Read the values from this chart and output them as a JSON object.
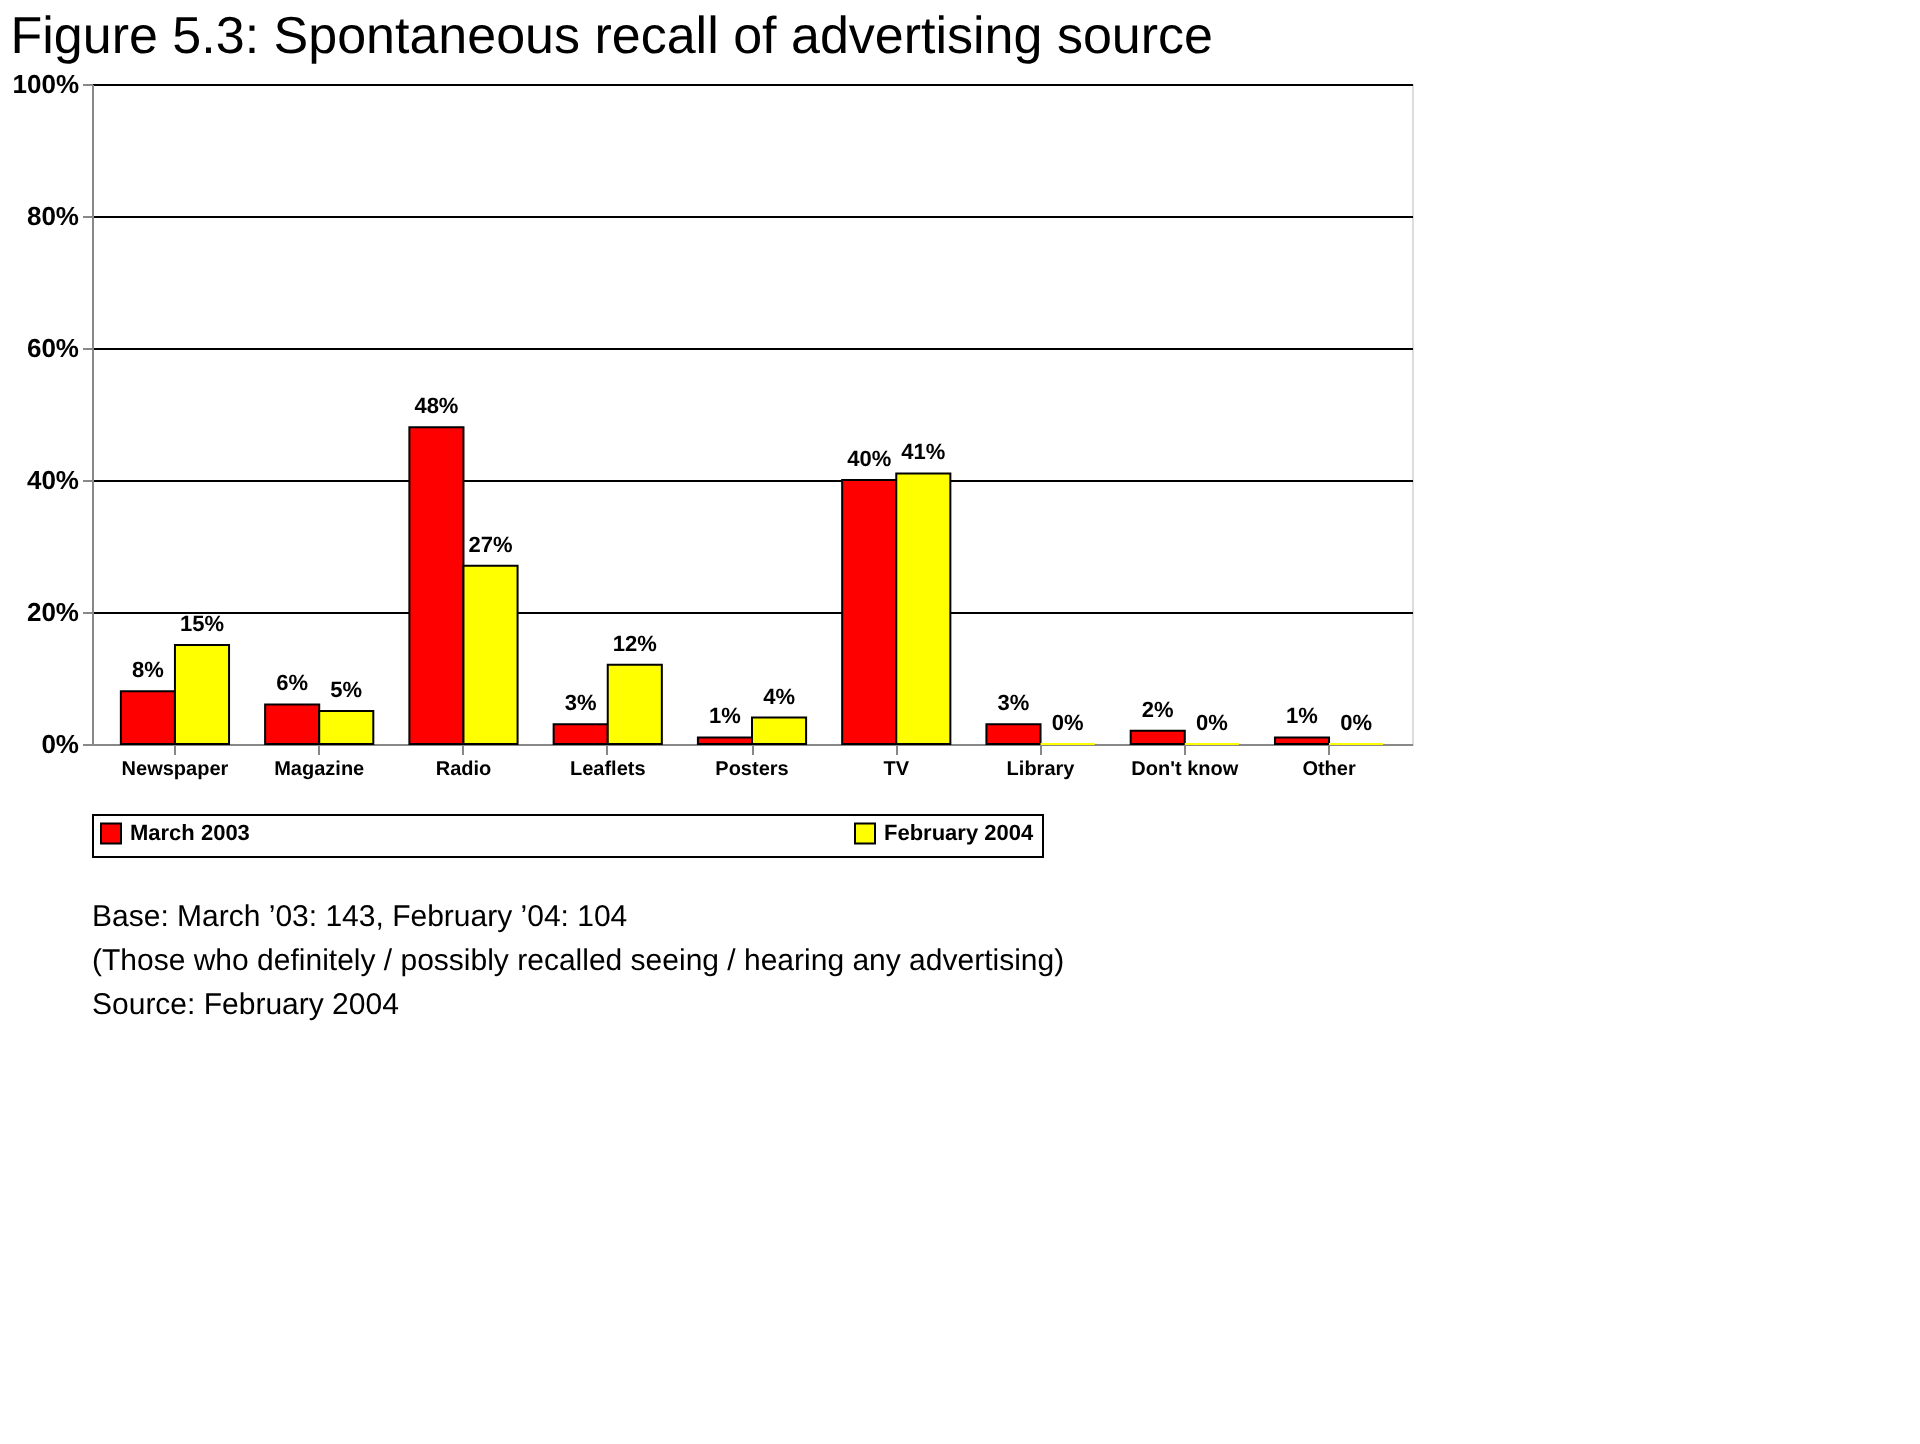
{
  "chart_data": {
    "type": "bar",
    "title": "Figure 5.3:  Spontaneous recall of advertising source",
    "categories": [
      "Newspaper",
      "Magazine",
      "Radio",
      "Leaflets",
      "Posters",
      "TV",
      "Library",
      "Don't know",
      "Other"
    ],
    "series": [
      {
        "name": "March 2003",
        "color": "#ff0000",
        "values": [
          8,
          6,
          48,
          3,
          1,
          40,
          3,
          2,
          1
        ],
        "value_labels": [
          "8%",
          "6%",
          "48%",
          "3%",
          "1%",
          "40%",
          "3%",
          "2%",
          "1%"
        ]
      },
      {
        "name": "February 2004",
        "color": "#ffff00",
        "values": [
          15,
          5,
          27,
          12,
          4,
          41,
          0,
          0,
          0
        ],
        "value_labels": [
          "15%",
          "5%",
          "27%",
          "12%",
          "4%",
          "41%",
          "0%",
          "0%",
          "0%"
        ]
      }
    ],
    "ylim": [
      0,
      100
    ],
    "yticks": [
      {
        "value": 0,
        "label": "0%"
      },
      {
        "value": 20,
        "label": "20%"
      },
      {
        "value": 40,
        "label": "40%"
      },
      {
        "value": 60,
        "label": "60%"
      },
      {
        "value": 80,
        "label": "80%"
      },
      {
        "value": 100,
        "label": "100%"
      }
    ],
    "grid": "y",
    "legend": "bottom",
    "annotations": [
      "Base:      March ’03:  143, February ’04:  104",
      "(Those who definitely / possibly recalled seeing / hearing any advertising)",
      "Source:   February 2004"
    ]
  }
}
